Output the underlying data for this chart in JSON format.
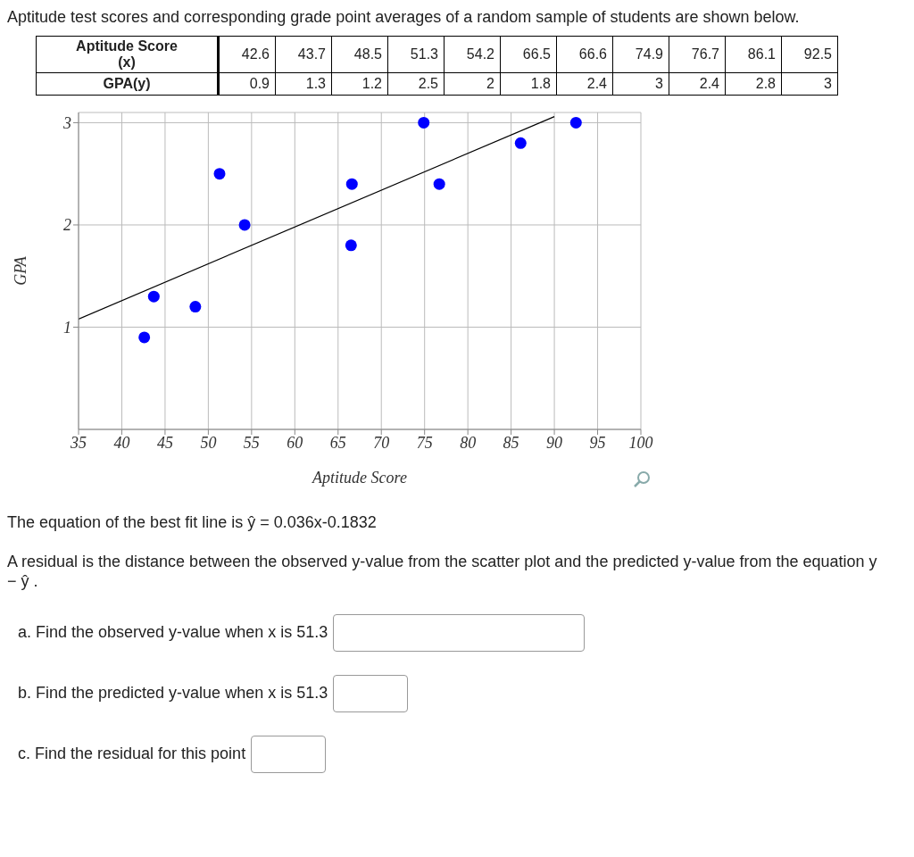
{
  "chart_data": {
    "type": "scatter",
    "title": "Aptitude test scores and corresponding grade point averages of a random sample of students are shown below.",
    "xlabel": "Aptitude Score",
    "ylabel": "GPA",
    "series": [
      {
        "color": "#0000ff",
        "marker": "circle",
        "x": [
          42.6,
          43.7,
          48.5,
          51.3,
          54.2,
          66.5,
          66.6,
          74.9,
          76.7,
          86.1,
          92.5
        ],
        "values": [
          0.9,
          1.3,
          1.2,
          2.5,
          2,
          1.8,
          2.4,
          3,
          2.4,
          2.8,
          3
        ]
      },
      {
        "type": "line",
        "color": "#000000",
        "x": [
          35,
          90
        ],
        "values": [
          1.08,
          3.06
        ]
      }
    ],
    "grid": true,
    "xlim": [
      35,
      100
    ],
    "xticks": [
      35,
      40,
      45,
      50,
      55,
      60,
      65,
      70,
      75,
      80,
      85,
      90,
      95,
      100
    ],
    "ylim": [
      0,
      3.1
    ],
    "yticks": [
      1,
      2,
      3
    ],
    "annotations": [
      "Aptitude Score\n(x)",
      "GPA(y)",
      "The equation of the best fit line is ŷ = 0.036x-0.1832",
      "A residual is the distance between the observed y-value from the scatter plot and the predicted y-value from the equation y − ŷ .",
      "a. Find the observed y-value when x is 51.3",
      "b. Find the predicted y-value when x is 51.3",
      "c. Find the residual for this point",
      "42.6",
      "43.7",
      "48.5",
      "51.3",
      "54.2",
      "66.5",
      "66.6",
      "74.9",
      "76.7",
      "86.1",
      "92.5",
      "0.9",
      "1.3",
      "1.2",
      "2.5",
      "2",
      "1.8",
      "2.4",
      "3",
      "2.4",
      "2.8",
      "3"
    ]
  }
}
